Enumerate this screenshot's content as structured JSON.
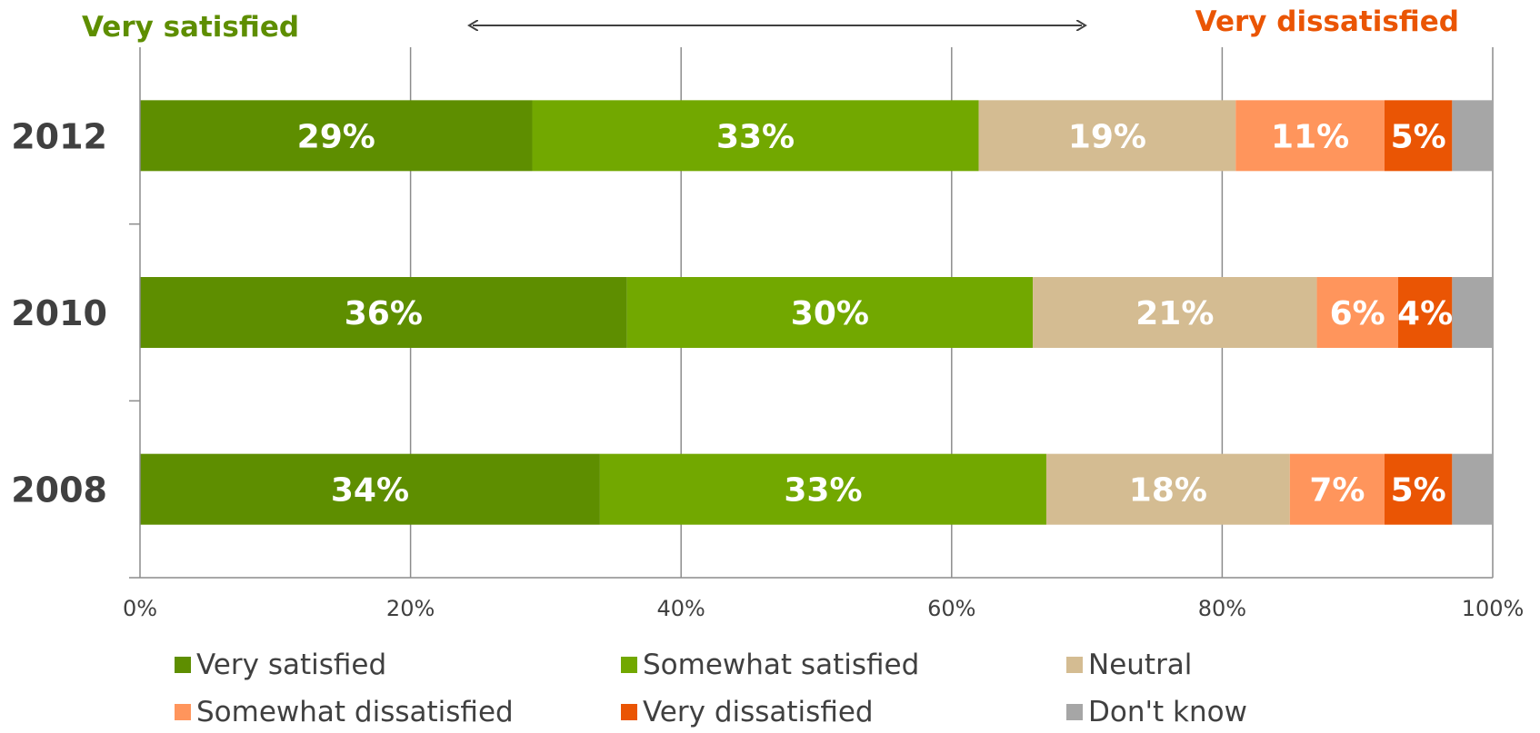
{
  "header": {
    "left_label": "Very satisfied",
    "right_label": "Very dissatisfied"
  },
  "chart_data": {
    "type": "bar",
    "orientation": "horizontal",
    "stacked": true,
    "categories": [
      "2012",
      "2010",
      "2008"
    ],
    "series": [
      {
        "name": "Very satisfied",
        "color": "#5e8e00",
        "values": [
          29,
          36,
          34
        ],
        "labels": [
          "29%",
          "36%",
          "34%"
        ]
      },
      {
        "name": "Somewhat satisfied",
        "color": "#72a800",
        "values": [
          33,
          30,
          33
        ],
        "labels": [
          "33%",
          "30%",
          "33%"
        ]
      },
      {
        "name": "Neutral",
        "color": "#d4bc92",
        "values": [
          19,
          21,
          18
        ],
        "labels": [
          "19%",
          "21%",
          "18%"
        ]
      },
      {
        "name": "Somewhat dissatisfied",
        "color": "#ff955c",
        "values": [
          11,
          6,
          7
        ],
        "labels": [
          "11%",
          "6%",
          "7%"
        ]
      },
      {
        "name": "Very dissatisfied",
        "color": "#ea5504",
        "values": [
          5,
          4,
          5
        ],
        "labels": [
          "5%",
          "4%",
          "5%"
        ]
      },
      {
        "name": "Don't know",
        "color": "#a6a6a6",
        "values": [
          3,
          3,
          3
        ],
        "labels": [
          "",
          "",
          ""
        ]
      }
    ],
    "xlim": [
      0,
      100
    ],
    "xticks": [
      "0%",
      "20%",
      "40%",
      "60%",
      "80%",
      "100%"
    ],
    "grid": true,
    "legend_position": "bottom",
    "annotation": "double-headed arrow between Very satisfied and Very dissatisfied"
  }
}
